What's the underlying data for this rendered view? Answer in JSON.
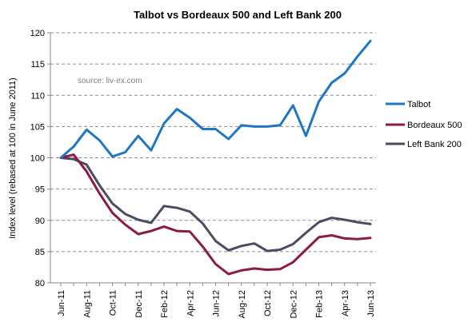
{
  "chart_data": {
    "type": "line",
    "title": "Talbot vs Bordeaux 500 and Left Bank 200",
    "ylabel": "Index level (rebased at 100 in June 2011)",
    "xlabel": "",
    "ylim": [
      80,
      120
    ],
    "yticks": [
      80,
      85,
      90,
      95,
      100,
      105,
      110,
      115,
      120
    ],
    "grid": true,
    "legend_position": "right",
    "source_note": "source: liv-ex.com",
    "x": [
      "Jun-11",
      "Jul-11",
      "Aug-11",
      "Sep-11",
      "Oct-11",
      "Nov-11",
      "Dec-11",
      "Jan-12",
      "Feb-12",
      "Mar-12",
      "Apr-12",
      "May-12",
      "Jun-12",
      "Jul-12",
      "Aug-12",
      "Sep-12",
      "Oct-12",
      "Nov-12",
      "Dec-12",
      "Jan-13",
      "Feb-13",
      "Mar-13",
      "Apr-13",
      "May-13",
      "Jun-13"
    ],
    "x_tick_labels": [
      "Jun-11",
      "",
      "Aug-11",
      "",
      "Oct-11",
      "",
      "Dec-11",
      "",
      "Feb-12",
      "",
      "Apr-12",
      "",
      "Jun-12",
      "",
      "Aug-12",
      "",
      "Oct-12",
      "",
      "Dec-12",
      "",
      "Feb-13",
      "",
      "Apr-13",
      "",
      "Jun-13"
    ],
    "series": [
      {
        "name": "Talbot",
        "color": "#1f77c4",
        "values": [
          100,
          101.8,
          104.5,
          102.8,
          100.2,
          100.9,
          103.5,
          101.2,
          105.5,
          107.8,
          106.4,
          104.6,
          104.6,
          103.0,
          105.2,
          105.0,
          105.0,
          105.2,
          108.4,
          103.5,
          109.0,
          112.0,
          113.5,
          116.2,
          118.7
        ]
      },
      {
        "name": "Bordeaux 500",
        "color": "#8b1a47",
        "values": [
          100,
          100.5,
          97.8,
          94.3,
          91.2,
          89.3,
          87.8,
          88.3,
          89.0,
          88.3,
          88.2,
          85.8,
          83.0,
          81.4,
          82.0,
          82.3,
          82.1,
          82.2,
          83.3,
          85.3,
          87.3,
          87.6,
          87.1,
          87.0,
          87.2
        ]
      },
      {
        "name": "Left Bank 200",
        "color": "#4d4a63",
        "values": [
          100,
          99.8,
          98.9,
          95.6,
          92.7,
          91.0,
          90.1,
          89.6,
          92.3,
          92.0,
          91.4,
          89.5,
          86.7,
          85.2,
          85.9,
          86.3,
          85.1,
          85.3,
          86.2,
          88.0,
          89.7,
          90.4,
          90.1,
          89.7,
          89.4
        ]
      }
    ]
  }
}
